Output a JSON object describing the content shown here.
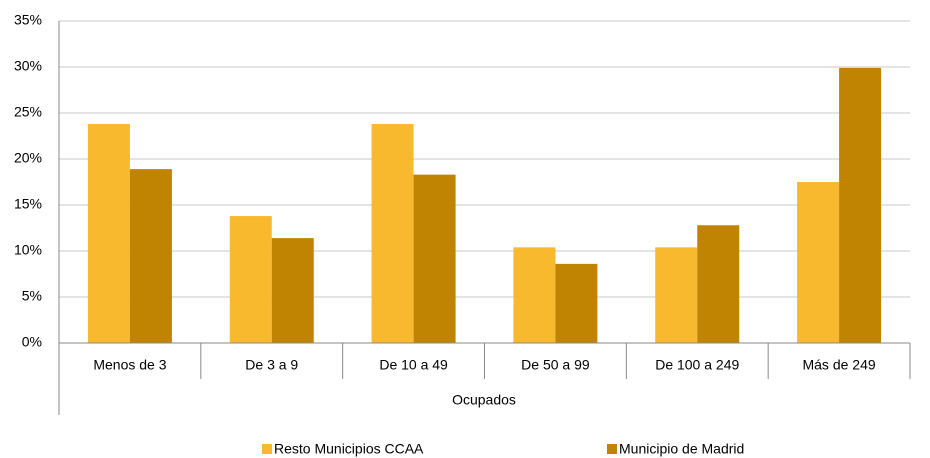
{
  "chart_data": {
    "type": "bar",
    "x_label": "Ocupados",
    "categories": [
      "Menos de 3",
      "De 3 a 9",
      "De 10 a 49",
      "De 50 a 99",
      "De 100 a 249",
      "Más de 249"
    ],
    "series": [
      {
        "name": "Resto Municipios CCAA",
        "color": "#f9b92e",
        "values": [
          23.8,
          13.8,
          23.8,
          10.4,
          10.4,
          17.5
        ]
      },
      {
        "name": "Municipio de Madrid",
        "color": "#c08402",
        "values": [
          18.9,
          11.4,
          18.3,
          8.6,
          12.8,
          29.9
        ]
      }
    ],
    "ylim": [
      0,
      35
    ],
    "yticks": [
      {
        "value": 0,
        "label": "0%"
      },
      {
        "value": 5,
        "label": "5%"
      },
      {
        "value": 10,
        "label": "10%"
      },
      {
        "value": 15,
        "label": "15%"
      },
      {
        "value": 20,
        "label": "20%"
      },
      {
        "value": 25,
        "label": "25%"
      },
      {
        "value": 30,
        "label": "30%"
      },
      {
        "value": 35,
        "label": "35%"
      }
    ],
    "grid": true
  }
}
